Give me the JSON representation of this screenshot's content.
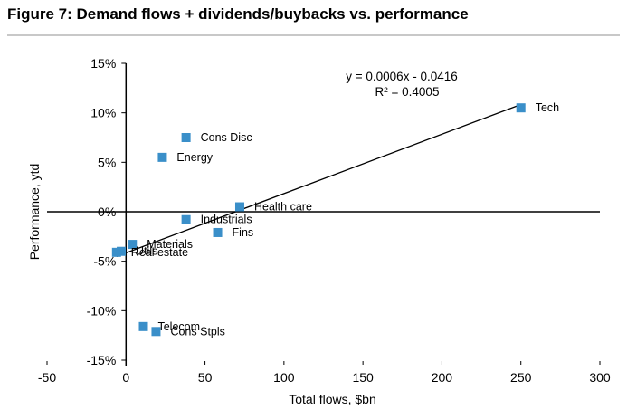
{
  "figure": {
    "title": "Figure 7: Demand flows + dividends/buybacks vs. performance"
  },
  "chart_data": {
    "type": "scatter",
    "title": "Figure 7: Demand flows + dividends/buybacks vs. performance",
    "xlabel": "Total flows, $bn",
    "ylabel": "Performance, ytd",
    "xlim": [
      -50,
      300
    ],
    "ylim": [
      -15,
      15
    ],
    "xticks": [
      -50,
      0,
      50,
      100,
      150,
      200,
      250,
      300
    ],
    "yticks": [
      -15,
      -10,
      -5,
      0,
      5,
      10,
      15
    ],
    "xtick_labels": [
      "-50",
      "0",
      "50",
      "100",
      "150",
      "200",
      "250",
      "300"
    ],
    "ytick_labels": [
      "-15%",
      "-10%",
      "-5%",
      "0%",
      "5%",
      "10%",
      "15%"
    ],
    "marker_color": "#3a8fc9",
    "points": [
      {
        "label": "Tech",
        "x": 250,
        "y": 10.5
      },
      {
        "label": "Cons Disc",
        "x": 38,
        "y": 7.5
      },
      {
        "label": "Energy",
        "x": 23,
        "y": 5.5
      },
      {
        "label": "Health care",
        "x": 72,
        "y": 0.5
      },
      {
        "label": "Industrials",
        "x": 38,
        "y": -0.8
      },
      {
        "label": "Fins",
        "x": 58,
        "y": -2.1
      },
      {
        "label": "Materials",
        "x": 4,
        "y": -3.3
      },
      {
        "label": "Utils",
        "x": -3,
        "y": -4.0
      },
      {
        "label": "Real estate",
        "x": -6,
        "y": -4.1
      },
      {
        "label": "Telecom",
        "x": 11,
        "y": -11.6
      },
      {
        "label": "Cons Stpls",
        "x": 19,
        "y": -12.1
      }
    ],
    "trendline": {
      "equation": "y = 0.0006x - 0.0416",
      "r2": "R² = 0.4005",
      "x_range": [
        -6,
        250
      ],
      "slope": 0.06,
      "intercept": -4.16
    }
  }
}
